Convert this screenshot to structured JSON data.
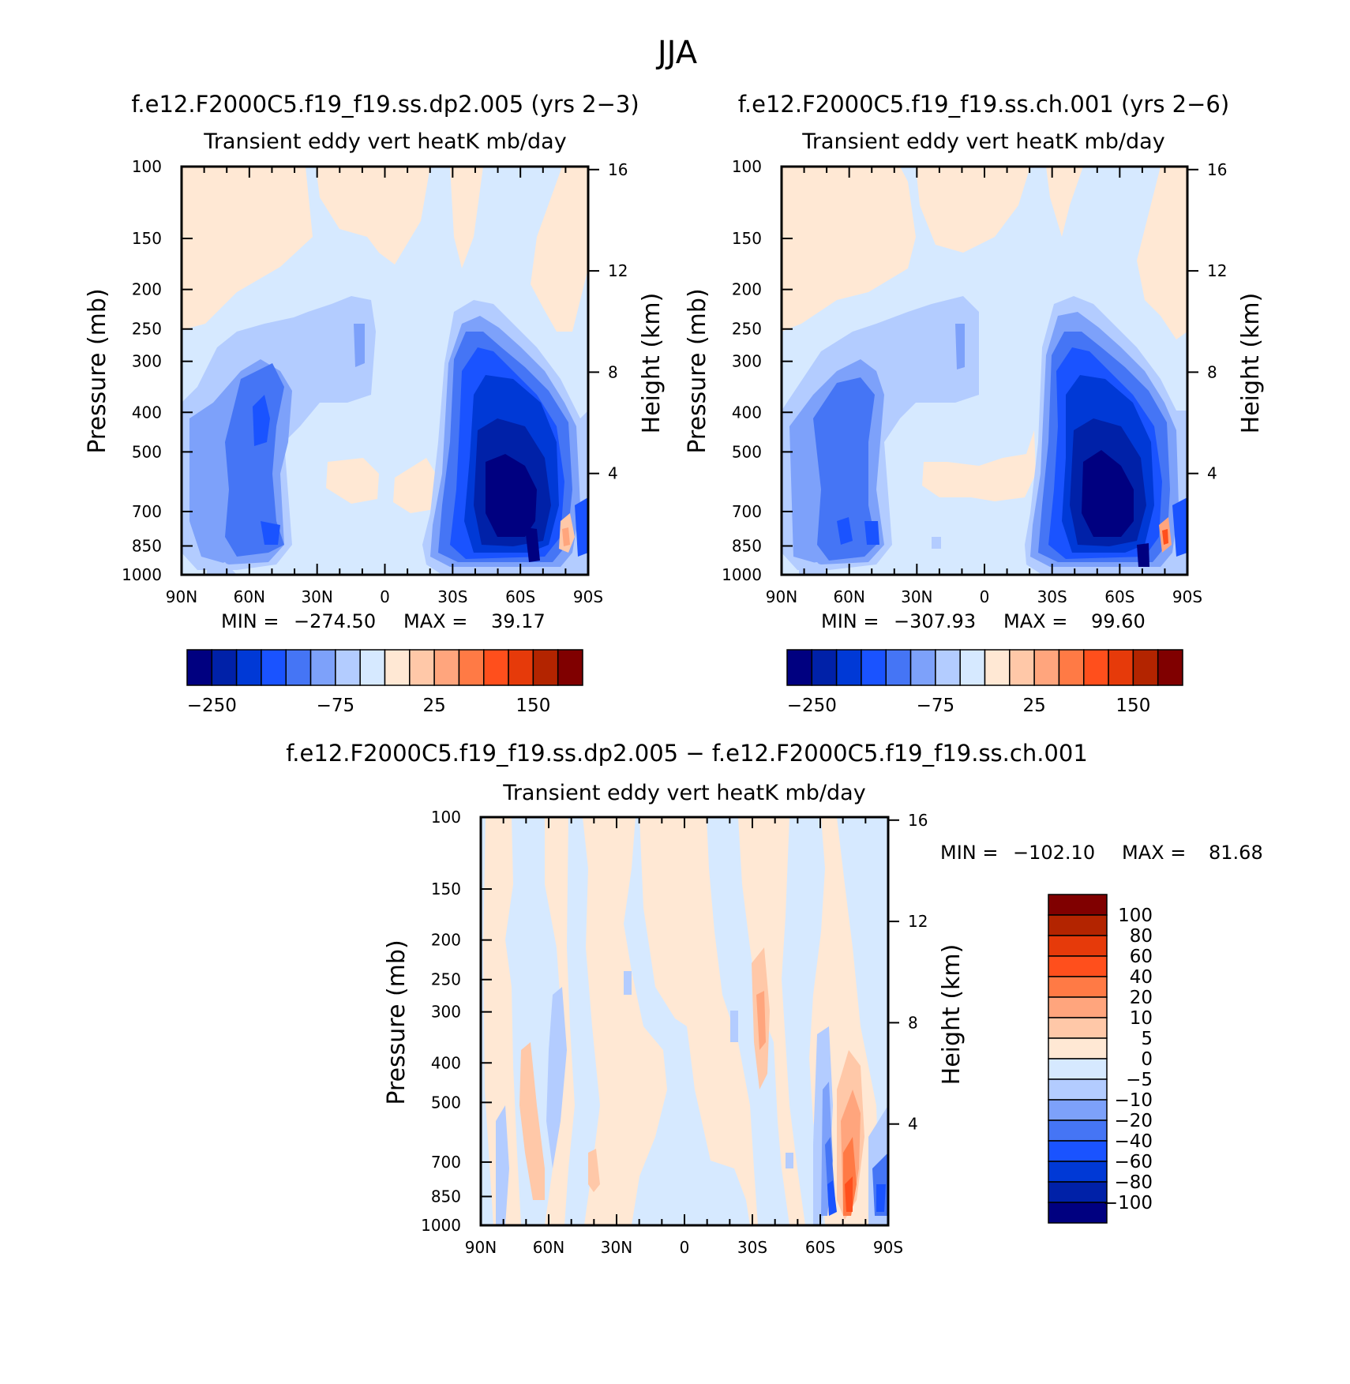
{
  "figure_title": "JJA",
  "chart_data": [
    {
      "type": "heatmap",
      "subtitle": "f.e12.F2000C5.f19_f19.ss.dp2.005 (yrs 2−3)",
      "title": "Transient eddy vert heatK mb/day",
      "ylabel": "Pressure (mb)",
      "y2label": "Height (km)",
      "xticks": [
        "90N",
        "60N",
        "30N",
        "0",
        "30S",
        "60S",
        "90S"
      ],
      "yticks": [
        "100",
        "150",
        "200",
        "250",
        "300",
        "400",
        "500",
        "700",
        "850",
        "1000"
      ],
      "y2ticks": [
        "16",
        "12",
        "8",
        "4"
      ],
      "xlim": [
        90,
        -90
      ],
      "ylim": [
        1000,
        100
      ],
      "log_y": true,
      "min_label": "MIN =",
      "min_value": "−274.50",
      "max_label": "MAX =",
      "max_value": "39.17",
      "colorbar": {
        "orientation": "horizontal",
        "labels": [
          "−250",
          "−75",
          "25",
          "150"
        ],
        "colors": [
          "#000080",
          "#0021a8",
          "#0039d6",
          "#1a53ff",
          "#4575f5",
          "#7da1fa",
          "#b3ccff",
          "#d6e9ff",
          "#ffe8d4",
          "#ffc8a8",
          "#ffa57d",
          "#ff7a45",
          "#ff4f1c",
          "#e63a0a",
          "#b32400",
          "#800000"
        ]
      },
      "field": "southern hemisphere negative maximum near 45S–70S, 400–1000 mb; weaker negative lobe near 60N–45N"
    },
    {
      "type": "heatmap",
      "subtitle": "f.e12.F2000C5.f19_f19.ss.ch.001 (yrs 2−6)",
      "title": "Transient eddy vert heatK mb/day",
      "ylabel": "Pressure (mb)",
      "y2label": "Height (km)",
      "xticks": [
        "90N",
        "60N",
        "30N",
        "0",
        "30S",
        "60S",
        "90S"
      ],
      "yticks": [
        "100",
        "150",
        "200",
        "250",
        "300",
        "400",
        "500",
        "700",
        "850",
        "1000"
      ],
      "y2ticks": [
        "16",
        "12",
        "8",
        "4"
      ],
      "xlim": [
        90,
        -90
      ],
      "ylim": [
        1000,
        100
      ],
      "log_y": true,
      "min_label": "MIN =",
      "min_value": "−307.93",
      "max_label": "MAX =",
      "max_value": "99.60",
      "colorbar": {
        "orientation": "horizontal",
        "labels": [
          "−250",
          "−75",
          "25",
          "150"
        ],
        "colors": [
          "#000080",
          "#0021a8",
          "#0039d6",
          "#1a53ff",
          "#4575f5",
          "#7da1fa",
          "#b3ccff",
          "#d6e9ff",
          "#ffe8d4",
          "#ffc8a8",
          "#ffa57d",
          "#ff7a45",
          "#ff4f1c",
          "#e63a0a",
          "#b32400",
          "#800000"
        ]
      }
    },
    {
      "type": "heatmap",
      "subtitle": "f.e12.F2000C5.f19_f19.ss.dp2.005 − f.e12.F2000C5.f19_f19.ss.ch.001",
      "title": "Transient eddy vert heatK mb/day",
      "ylabel": "Pressure (mb)",
      "y2label": "Height (km)",
      "xticks": [
        "90N",
        "60N",
        "30N",
        "0",
        "30S",
        "60S",
        "90S"
      ],
      "yticks": [
        "100",
        "150",
        "200",
        "250",
        "300",
        "400",
        "500",
        "700",
        "850",
        "1000"
      ],
      "y2ticks": [
        "16",
        "12",
        "8",
        "4"
      ],
      "xlim": [
        90,
        -90
      ],
      "ylim": [
        1000,
        100
      ],
      "log_y": true,
      "min_label": "MIN =",
      "min_value": "−102.10",
      "max_label": "MAX =",
      "max_value": "81.68",
      "colorbar": {
        "orientation": "vertical",
        "labels": [
          "100",
          "80",
          "60",
          "40",
          "20",
          "10",
          "5",
          "0",
          "−5",
          "−10",
          "−20",
          "−40",
          "−60",
          "−80",
          "−100"
        ],
        "colors": [
          "#800000",
          "#b32400",
          "#e63a0a",
          "#ff4f1c",
          "#ff7a45",
          "#ffa57d",
          "#ffc8a8",
          "#ffe8d4",
          "#d6e9ff",
          "#b3ccff",
          "#7da1fa",
          "#4575f5",
          "#1a53ff",
          "#0039d6",
          "#0021a8",
          "#000080"
        ]
      }
    }
  ]
}
